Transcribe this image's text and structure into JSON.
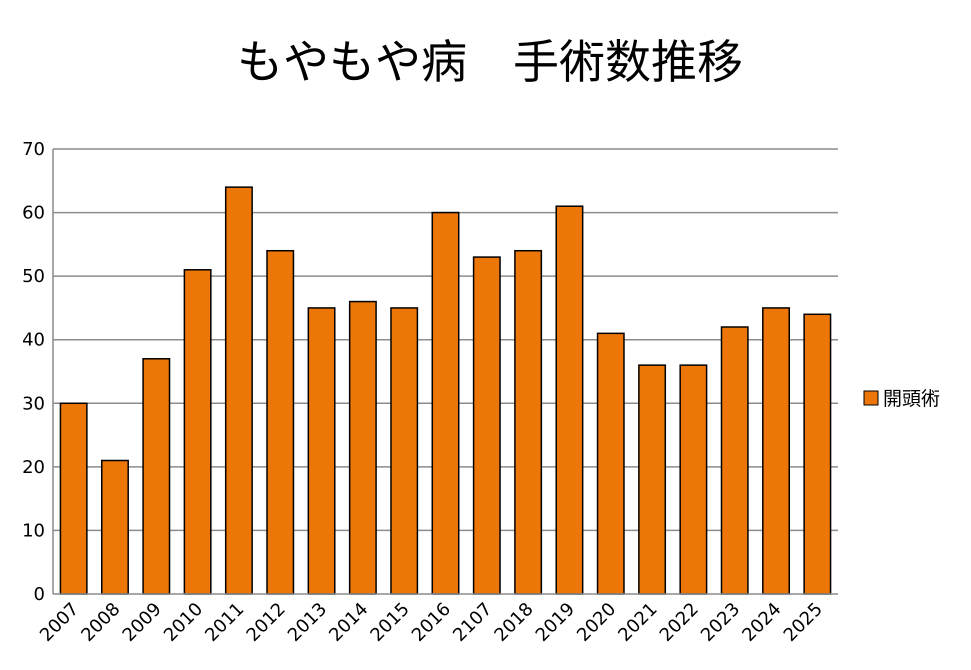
{
  "chart_data": {
    "type": "bar",
    "title": "もやもや病　手術数推移",
    "xlabel": "",
    "ylabel": "",
    "categories": [
      "2007",
      "2008",
      "2009",
      "2010",
      "2011",
      "2012",
      "2013",
      "2014",
      "2015",
      "2016",
      "2107",
      "2018",
      "2019",
      "2020",
      "2021",
      "2022",
      "2023",
      "2024",
      "2025"
    ],
    "series": [
      {
        "name": "開頭術",
        "values": [
          30,
          21,
          37,
          51,
          64,
          54,
          45,
          46,
          45,
          60,
          53,
          54,
          61,
          41,
          36,
          36,
          42,
          45,
          44
        ],
        "color": "#ED7609"
      }
    ],
    "ylim": [
      0,
      70
    ],
    "yticks": [
      0,
      10,
      20,
      30,
      40,
      50,
      60,
      70
    ],
    "grid": true,
    "legend": "right"
  }
}
